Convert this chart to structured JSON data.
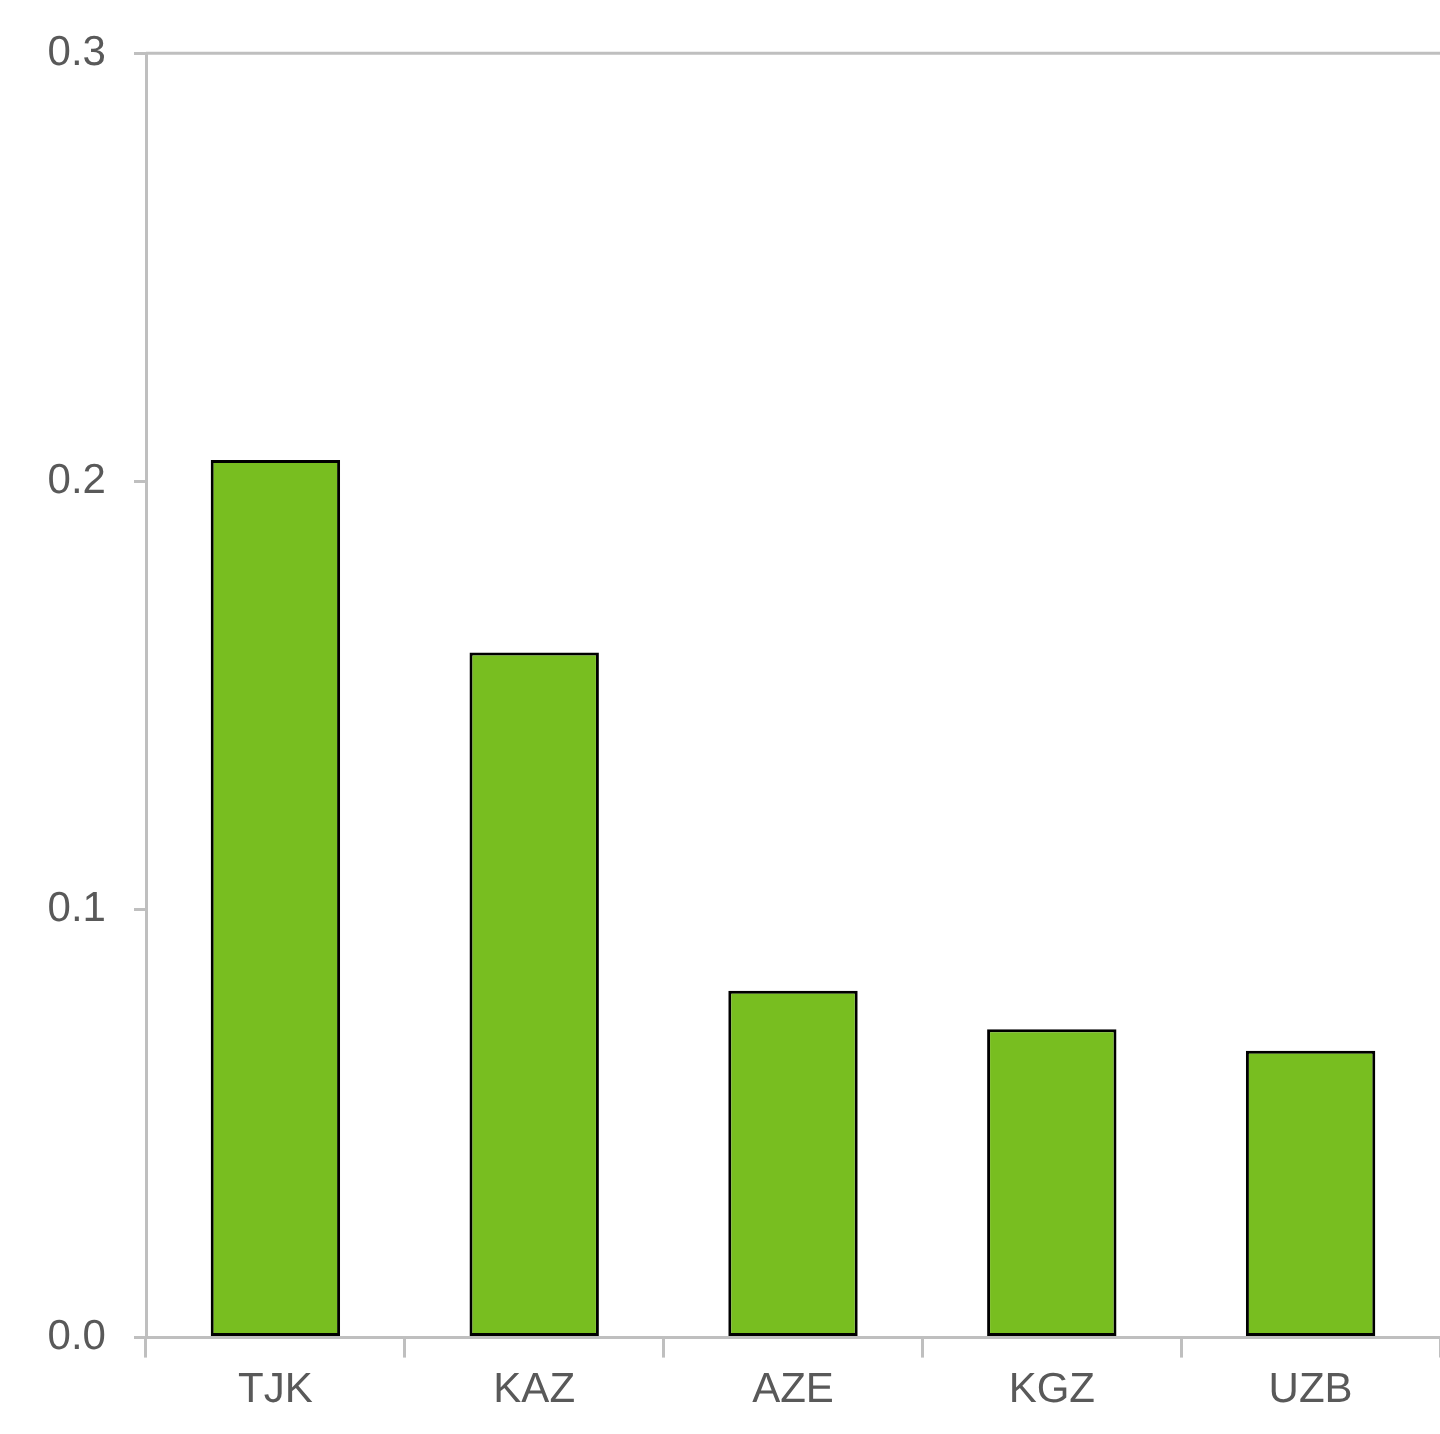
{
  "chart_data": {
    "type": "bar",
    "categories": [
      "TJK",
      "KAZ",
      "AZE",
      "KGZ",
      "UZB"
    ],
    "values": [
      0.205,
      0.16,
      0.081,
      0.072,
      0.067
    ],
    "color": "#78be20",
    "ylim": [
      0,
      0.3
    ],
    "yticks": [
      {
        "value": 0,
        "label": "0.0"
      },
      {
        "value": 0.1,
        "label": "0.1"
      },
      {
        "value": 0.2,
        "label": "0.2"
      },
      {
        "value": 0.3,
        "label": "0.3"
      }
    ],
    "grid": false,
    "legend": false
  }
}
